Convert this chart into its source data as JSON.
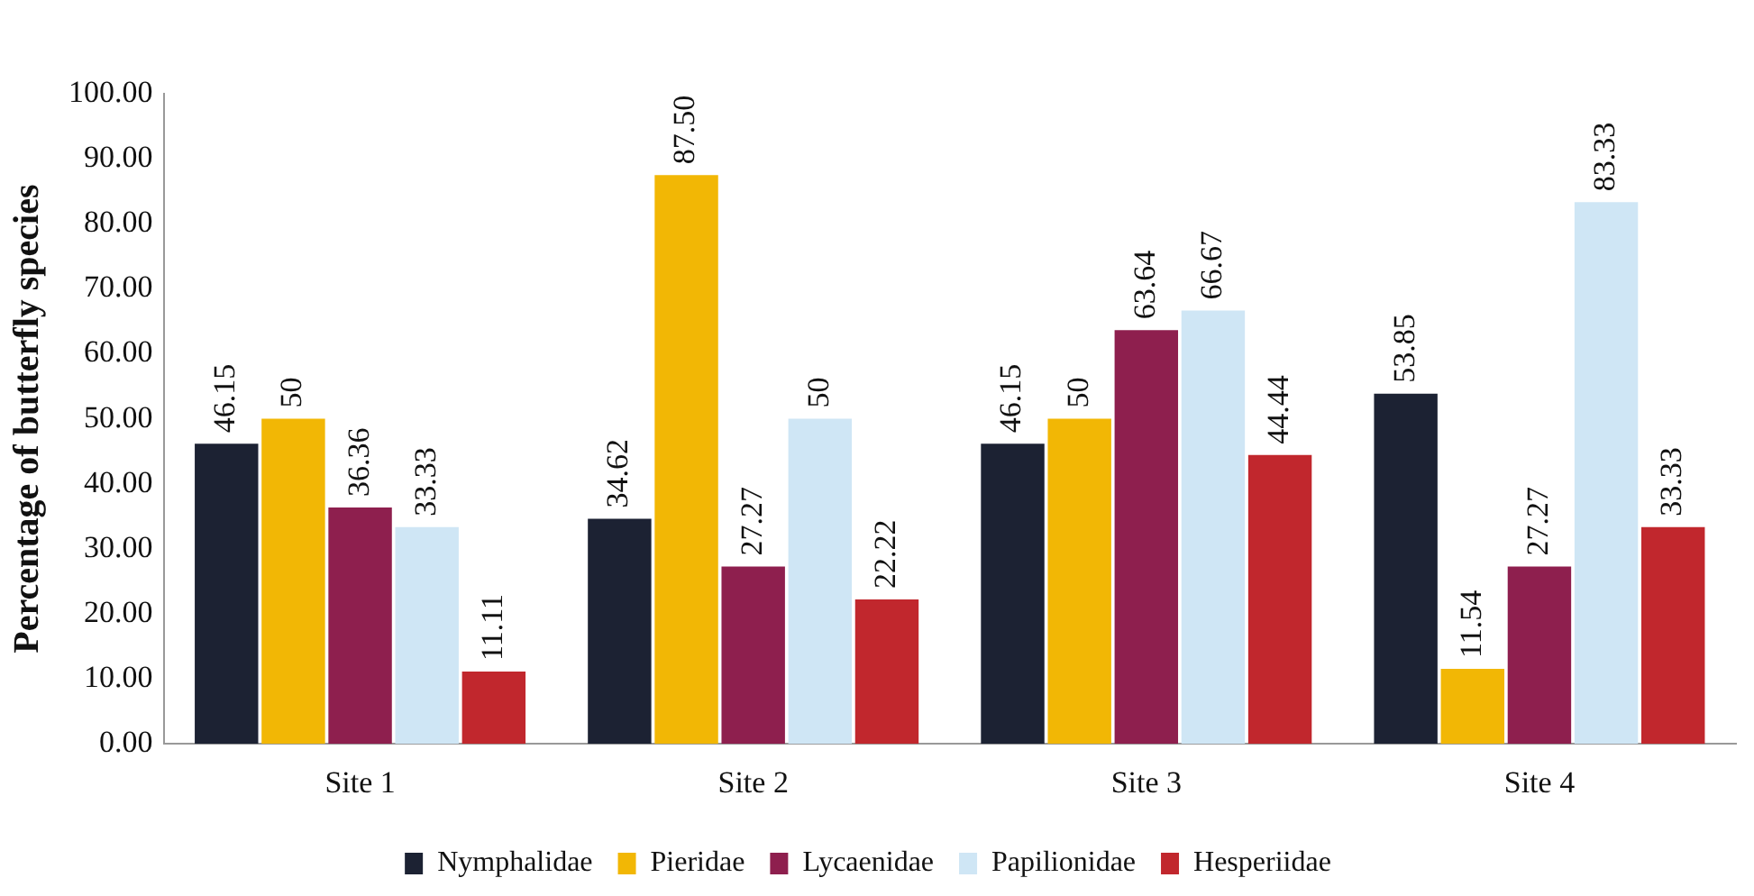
{
  "chart_data": {
    "type": "bar",
    "ylabel": "Percentage of butterfly species",
    "categories": [
      "Site 1",
      "Site 2",
      "Site 3",
      "Site 4"
    ],
    "series": [
      {
        "name": "Nymphalidae",
        "color": "#1c2233",
        "values": [
          46.15,
          34.62,
          46.15,
          53.85
        ],
        "value_labels": [
          "46.15",
          "34.62",
          "46.15",
          "53.85"
        ]
      },
      {
        "name": "Pieridae",
        "color": "#f2b705",
        "values": [
          50,
          87.5,
          50,
          11.54
        ],
        "value_labels": [
          "50",
          "87.50",
          "50",
          "11.54"
        ]
      },
      {
        "name": "Lycaenidae",
        "color": "#8e1f4e",
        "values": [
          36.36,
          27.27,
          63.64,
          27.27
        ],
        "value_labels": [
          "36.36",
          "27.27",
          "63.64",
          "27.27"
        ]
      },
      {
        "name": "Papilionidae",
        "color": "#cfe6f5",
        "values": [
          33.33,
          50,
          66.67,
          83.33
        ],
        "value_labels": [
          "33.33",
          "50",
          "66.67",
          "83.33"
        ]
      },
      {
        "name": "Hesperiidae",
        "color": "#c1272d",
        "values": [
          11.11,
          22.22,
          44.44,
          33.33
        ],
        "value_labels": [
          "11.11",
          "22.22",
          "44.44",
          "33.33"
        ]
      }
    ],
    "ylim": [
      0,
      100
    ],
    "yticks": [
      {
        "value": 0,
        "label": "0.00"
      },
      {
        "value": 10,
        "label": "10.00"
      },
      {
        "value": 20,
        "label": "20.00"
      },
      {
        "value": 30,
        "label": "30.00"
      },
      {
        "value": 40,
        "label": "40.00"
      },
      {
        "value": 50,
        "label": "50.00"
      },
      {
        "value": 60,
        "label": "60.00"
      },
      {
        "value": 70,
        "label": "70.00"
      },
      {
        "value": 80,
        "label": "80.00"
      },
      {
        "value": 90,
        "label": "90.00"
      },
      {
        "value": 100,
        "label": "100.00"
      }
    ],
    "grid": false,
    "legend": "bottom"
  }
}
